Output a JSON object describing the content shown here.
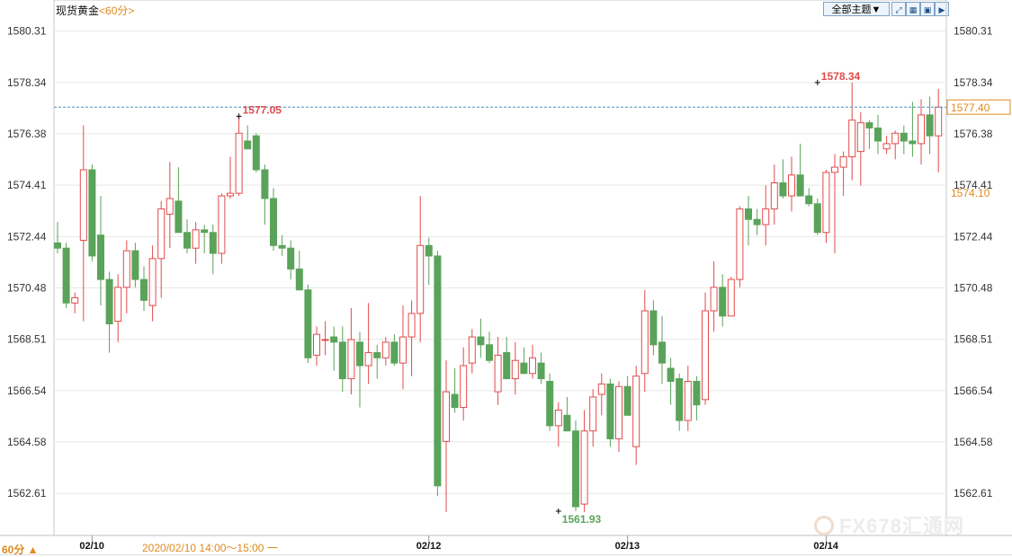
{
  "header": {
    "instrument": "现货黄金",
    "period": "<60分>"
  },
  "toolbar": {
    "theme_label": "全部主题",
    "theme_arrow": "▼",
    "icons": [
      "expand-icon",
      "grid-icon",
      "zoom-icon",
      "next-icon"
    ]
  },
  "footer": {
    "period_label": "60分 ▲",
    "cursor_info": "2020/02/10 14:00～15:00 一"
  },
  "watermark": {
    "text": "FX678汇通网"
  },
  "colors": {
    "up": "#e34b4b",
    "down": "#5aa35a",
    "grid": "#e6e6e6",
    "last_line": "#4a8fc0",
    "current_price": "#e08a1e"
  },
  "chart_data": {
    "type": "candlestick",
    "ylim": [
      1561.0,
      1581.5
    ],
    "y_ticks": [
      "1580.31",
      "1578.34",
      "1576.38",
      "1574.41",
      "1572.44",
      "1570.48",
      "1568.51",
      "1566.54",
      "1564.58",
      "1562.61"
    ],
    "x_labels": [
      {
        "label": "02/10",
        "index": 4
      },
      {
        "label": "02/12",
        "index": 43
      },
      {
        "label": "02/13",
        "index": 66
      },
      {
        "label": "02/14",
        "index": 89
      }
    ],
    "annotations": [
      {
        "text": "1577.05",
        "index": 21,
        "value": 1577.05,
        "color": "#e34b4b"
      },
      {
        "text": "1578.34",
        "index": 88,
        "value": 1578.34,
        "color": "#e34b4b"
      },
      {
        "text": "1561.93",
        "index": 58,
        "value": 1561.93,
        "color": "#5aa35a"
      }
    ],
    "last_price": {
      "text": "1577.40",
      "value": 1577.4
    },
    "extra_price_label": {
      "text": "1574.10",
      "value": 1574.1
    },
    "ohlc": [
      [
        1572.2,
        1573.0,
        1571.8,
        1572.0
      ],
      [
        1572.0,
        1572.2,
        1569.7,
        1569.9
      ],
      [
        1569.9,
        1570.3,
        1569.5,
        1570.1
      ],
      [
        1572.3,
        1576.7,
        1569.2,
        1575.0
      ],
      [
        1575.0,
        1575.2,
        1571.5,
        1571.7
      ],
      [
        1572.5,
        1574.0,
        1569.8,
        1570.8
      ],
      [
        1570.8,
        1571.1,
        1568.0,
        1569.1
      ],
      [
        1569.2,
        1571.0,
        1568.4,
        1570.5
      ],
      [
        1570.5,
        1572.3,
        1569.5,
        1571.9
      ],
      [
        1571.9,
        1572.2,
        1570.5,
        1570.8
      ],
      [
        1570.8,
        1571.3,
        1569.6,
        1570.0
      ],
      [
        1569.8,
        1572.1,
        1569.2,
        1571.6
      ],
      [
        1571.6,
        1573.8,
        1570.1,
        1573.5
      ],
      [
        1573.3,
        1575.3,
        1572.0,
        1573.9
      ],
      [
        1573.8,
        1575.1,
        1572.6,
        1572.6
      ],
      [
        1572.6,
        1573.1,
        1571.8,
        1572.0
      ],
      [
        1572.0,
        1573.0,
        1571.4,
        1572.7
      ],
      [
        1572.7,
        1572.9,
        1571.8,
        1572.6
      ],
      [
        1572.6,
        1572.9,
        1571.0,
        1571.8
      ],
      [
        1571.8,
        1574.1,
        1571.4,
        1574.0
      ],
      [
        1574.0,
        1575.5,
        1573.9,
        1574.1
      ],
      [
        1574.1,
        1577.05,
        1574.0,
        1576.4
      ],
      [
        1576.1,
        1576.7,
        1575.8,
        1575.8
      ],
      [
        1576.3,
        1576.4,
        1574.9,
        1575.0
      ],
      [
        1575.0,
        1575.2,
        1572.9,
        1573.9
      ],
      [
        1573.9,
        1574.3,
        1571.9,
        1572.1
      ],
      [
        1572.1,
        1572.5,
        1571.7,
        1572.0
      ],
      [
        1572.0,
        1572.3,
        1570.8,
        1571.2
      ],
      [
        1571.2,
        1571.9,
        1570.5,
        1570.4
      ],
      [
        1570.4,
        1570.6,
        1567.6,
        1567.8
      ],
      [
        1567.9,
        1569.0,
        1567.5,
        1568.7
      ],
      [
        1568.5,
        1569.2,
        1567.9,
        1568.5
      ],
      [
        1568.6,
        1569.0,
        1567.3,
        1568.4
      ],
      [
        1568.4,
        1569.0,
        1566.5,
        1567.0
      ],
      [
        1567.0,
        1569.7,
        1566.4,
        1568.5
      ],
      [
        1568.4,
        1568.8,
        1565.9,
        1567.5
      ],
      [
        1567.5,
        1569.9,
        1566.8,
        1568.0
      ],
      [
        1568.0,
        1568.3,
        1567.0,
        1567.8
      ],
      [
        1567.8,
        1568.6,
        1567.5,
        1568.4
      ],
      [
        1568.4,
        1568.7,
        1567.5,
        1567.6
      ],
      [
        1567.6,
        1569.8,
        1566.6,
        1568.6
      ],
      [
        1568.6,
        1570.0,
        1567.1,
        1569.5
      ],
      [
        1569.5,
        1574.0,
        1568.4,
        1572.1
      ],
      [
        1572.1,
        1572.4,
        1570.6,
        1571.7
      ],
      [
        1571.7,
        1571.9,
        1562.5,
        1562.9
      ],
      [
        1564.6,
        1567.7,
        1561.9,
        1566.5
      ],
      [
        1566.4,
        1567.4,
        1565.7,
        1565.9
      ],
      [
        1565.9,
        1568.2,
        1565.4,
        1567.5
      ],
      [
        1567.6,
        1568.9,
        1567.2,
        1568.6
      ],
      [
        1568.6,
        1569.3,
        1567.8,
        1568.3
      ],
      [
        1568.3,
        1568.8,
        1567.6,
        1567.7
      ],
      [
        1566.5,
        1568.6,
        1566.0,
        1567.9
      ],
      [
        1568.0,
        1568.6,
        1567.2,
        1567.0
      ],
      [
        1567.0,
        1568.4,
        1566.4,
        1567.7
      ],
      [
        1567.6,
        1568.2,
        1567.2,
        1567.2
      ],
      [
        1567.2,
        1568.3,
        1567.0,
        1567.8
      ],
      [
        1567.6,
        1568.0,
        1566.8,
        1567.0
      ],
      [
        1566.9,
        1567.2,
        1565.0,
        1565.2
      ],
      [
        1565.2,
        1566.1,
        1564.4,
        1565.8
      ],
      [
        1565.6,
        1566.3,
        1565.0,
        1565.0
      ],
      [
        1565.0,
        1565.4,
        1561.93,
        1562.1
      ],
      [
        1562.2,
        1565.8,
        1561.9,
        1565.0
      ],
      [
        1565.0,
        1566.6,
        1564.4,
        1566.3
      ],
      [
        1566.4,
        1567.2,
        1565.6,
        1566.8
      ],
      [
        1566.8,
        1567.0,
        1564.4,
        1564.7
      ],
      [
        1564.7,
        1566.9,
        1564.2,
        1566.7
      ],
      [
        1566.7,
        1567.1,
        1565.6,
        1565.6
      ],
      [
        1564.4,
        1567.5,
        1563.7,
        1567.1
      ],
      [
        1567.2,
        1570.4,
        1566.5,
        1569.6
      ],
      [
        1569.6,
        1570.0,
        1567.9,
        1568.3
      ],
      [
        1568.4,
        1569.4,
        1566.8,
        1567.6
      ],
      [
        1567.4,
        1567.8,
        1566.0,
        1566.9
      ],
      [
        1567.0,
        1567.2,
        1565.0,
        1565.4
      ],
      [
        1565.4,
        1567.5,
        1565.0,
        1566.9
      ],
      [
        1566.9,
        1567.1,
        1565.4,
        1566.0
      ],
      [
        1566.2,
        1570.3,
        1566.0,
        1569.6
      ],
      [
        1569.6,
        1571.5,
        1568.8,
        1570.5
      ],
      [
        1570.5,
        1571.0,
        1569.0,
        1569.4
      ],
      [
        1569.4,
        1570.9,
        1569.4,
        1570.8
      ],
      [
        1570.8,
        1573.6,
        1570.5,
        1573.5
      ],
      [
        1573.5,
        1574.0,
        1572.1,
        1573.1
      ],
      [
        1573.1,
        1573.5,
        1572.5,
        1572.9
      ],
      [
        1572.9,
        1574.4,
        1572.1,
        1573.5
      ],
      [
        1573.5,
        1575.2,
        1572.9,
        1574.5
      ],
      [
        1574.5,
        1575.4,
        1573.9,
        1574.0
      ],
      [
        1574.0,
        1575.5,
        1573.4,
        1574.8
      ],
      [
        1574.8,
        1576.0,
        1574.1,
        1574.0
      ],
      [
        1574.0,
        1574.3,
        1573.6,
        1573.7
      ],
      [
        1573.7,
        1573.9,
        1572.5,
        1572.6
      ],
      [
        1572.6,
        1575.0,
        1572.2,
        1574.9
      ],
      [
        1574.9,
        1575.6,
        1571.8,
        1575.1
      ],
      [
        1575.1,
        1575.7,
        1574.0,
        1575.5
      ],
      [
        1575.5,
        1578.34,
        1574.6,
        1576.9
      ],
      [
        1575.7,
        1577.2,
        1574.4,
        1576.8
      ],
      [
        1576.8,
        1576.9,
        1575.8,
        1576.6
      ],
      [
        1576.6,
        1577.1,
        1575.6,
        1576.1
      ],
      [
        1575.8,
        1576.3,
        1575.6,
        1576.0
      ],
      [
        1576.0,
        1576.5,
        1575.4,
        1576.4
      ],
      [
        1576.4,
        1576.7,
        1575.6,
        1576.1
      ],
      [
        1576.1,
        1577.6,
        1575.5,
        1576.0
      ],
      [
        1576.0,
        1577.7,
        1575.2,
        1577.1
      ],
      [
        1577.1,
        1577.8,
        1575.6,
        1576.3
      ],
      [
        1576.3,
        1578.1,
        1574.9,
        1577.4
      ]
    ]
  }
}
